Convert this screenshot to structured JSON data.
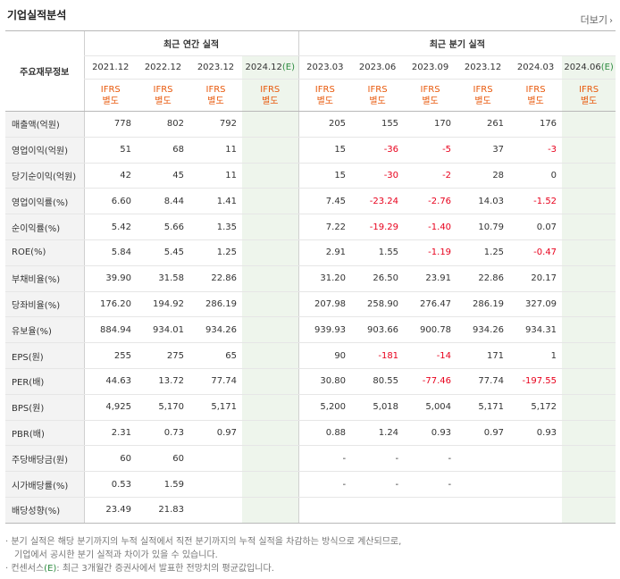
{
  "title": "기업실적분석",
  "more_label": "더보기",
  "header": {
    "row_label": "주요재무정보",
    "annual_group": "최근 연간 실적",
    "quarter_group": "최근 분기 실적",
    "annual_periods": [
      "2021.12",
      "2022.12",
      "2023.12",
      "2024.12"
    ],
    "quarter_periods": [
      "2023.03",
      "2023.06",
      "2023.09",
      "2023.12",
      "2024.03",
      "2024.06"
    ],
    "estimate_mark": "(E)",
    "ifrs_line1": "IFRS",
    "ifrs_line2": "별도"
  },
  "rows": [
    {
      "label": "매출액(억원)",
      "annual": [
        "778",
        "802",
        "792",
        ""
      ],
      "quarter": [
        "205",
        "155",
        "170",
        "261",
        "176",
        ""
      ]
    },
    {
      "label": "영업이익(억원)",
      "annual": [
        "51",
        "68",
        "11",
        ""
      ],
      "quarter": [
        "15",
        "-36",
        "-5",
        "37",
        "-3",
        ""
      ]
    },
    {
      "label": "당기순이익(억원)",
      "annual": [
        "42",
        "45",
        "11",
        ""
      ],
      "quarter": [
        "15",
        "-30",
        "-2",
        "28",
        "0",
        ""
      ]
    },
    {
      "label": "영업이익률(%)",
      "annual": [
        "6.60",
        "8.44",
        "1.41",
        ""
      ],
      "quarter": [
        "7.45",
        "-23.24",
        "-2.76",
        "14.03",
        "-1.52",
        ""
      ]
    },
    {
      "label": "순이익률(%)",
      "annual": [
        "5.42",
        "5.66",
        "1.35",
        ""
      ],
      "quarter": [
        "7.22",
        "-19.29",
        "-1.40",
        "10.79",
        "0.07",
        ""
      ]
    },
    {
      "label": "ROE(%)",
      "annual": [
        "5.84",
        "5.45",
        "1.25",
        ""
      ],
      "quarter": [
        "2.91",
        "1.55",
        "-1.19",
        "1.25",
        "-0.47",
        ""
      ]
    },
    {
      "label": "부채비율(%)",
      "annual": [
        "39.90",
        "31.58",
        "22.86",
        ""
      ],
      "quarter": [
        "31.20",
        "26.50",
        "23.91",
        "22.86",
        "20.17",
        ""
      ]
    },
    {
      "label": "당좌비율(%)",
      "annual": [
        "176.20",
        "194.92",
        "286.19",
        ""
      ],
      "quarter": [
        "207.98",
        "258.90",
        "276.47",
        "286.19",
        "327.09",
        ""
      ]
    },
    {
      "label": "유보율(%)",
      "annual": [
        "884.94",
        "934.01",
        "934.26",
        ""
      ],
      "quarter": [
        "939.93",
        "903.66",
        "900.78",
        "934.26",
        "934.31",
        ""
      ]
    },
    {
      "label": "EPS(원)",
      "annual": [
        "255",
        "275",
        "65",
        ""
      ],
      "quarter": [
        "90",
        "-181",
        "-14",
        "171",
        "1",
        ""
      ]
    },
    {
      "label": "PER(배)",
      "annual": [
        "44.63",
        "13.72",
        "77.74",
        ""
      ],
      "quarter": [
        "30.80",
        "80.55",
        "-77.46",
        "77.74",
        "-197.55",
        ""
      ]
    },
    {
      "label": "BPS(원)",
      "annual": [
        "4,925",
        "5,170",
        "5,171",
        ""
      ],
      "quarter": [
        "5,200",
        "5,018",
        "5,004",
        "5,171",
        "5,172",
        ""
      ]
    },
    {
      "label": "PBR(배)",
      "annual": [
        "2.31",
        "0.73",
        "0.97",
        ""
      ],
      "quarter": [
        "0.88",
        "1.24",
        "0.93",
        "0.97",
        "0.93",
        ""
      ]
    },
    {
      "label": "주당배당금(원)",
      "annual": [
        "60",
        "60",
        "",
        ""
      ],
      "quarter": [
        "-",
        "-",
        "-",
        "",
        "",
        ""
      ]
    },
    {
      "label": "시가배당률(%)",
      "annual": [
        "0.53",
        "1.59",
        "",
        ""
      ],
      "quarter": [
        "-",
        "-",
        "-",
        "",
        "",
        ""
      ]
    },
    {
      "label": "배당성향(%)",
      "annual": [
        "23.49",
        "21.83",
        "",
        ""
      ],
      "quarter": [
        "",
        "",
        "",
        "",
        "",
        ""
      ]
    }
  ],
  "notes": {
    "line1": "분기 실적은 해당 분기까지의 누적 실적에서 직전 분기까지의 누적 실적을 차감하는 방식으로 계산되므로,",
    "line2": "기업에서 공시한 분기 실적과 차이가 있을 수 있습니다.",
    "line3_prefix": "컨센서스",
    "line3_mark": "(E)",
    "line3_suffix": ": 최근 3개월간 증권사에서 발표한 전망치의 평균값입니다."
  },
  "colors": {
    "negative": "#e8001c",
    "ifrs": "#e8590c",
    "estimate_bg": "#eef5ec",
    "estimate_mark": "#2b8a3e"
  }
}
